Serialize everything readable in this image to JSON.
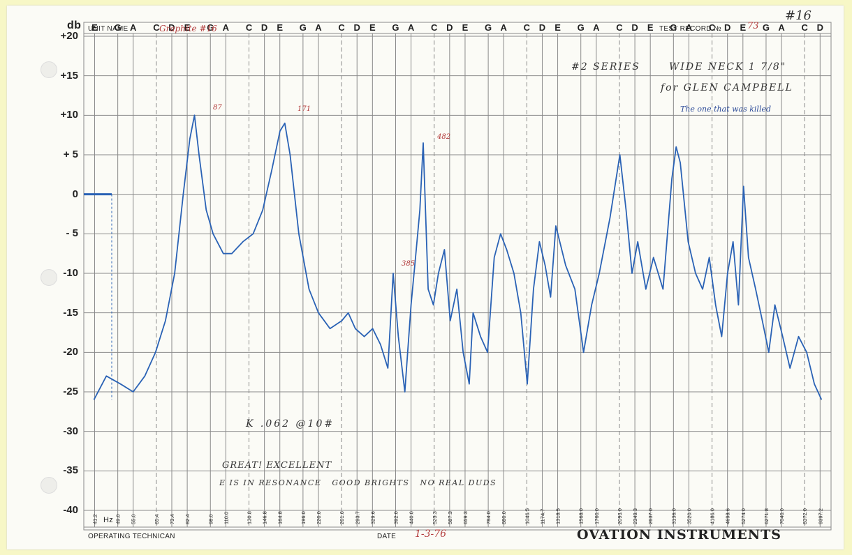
{
  "header": {
    "db_unit": "db",
    "unit_name_label": "UNIT NAME",
    "unit_name_value": "Graphite #16",
    "test_record_label": "TEST RECORD №",
    "test_record_value": "73",
    "corner_note": "#16"
  },
  "footer": {
    "operating_technician_label": "OPERATING TECHNICAN",
    "date_label": "DATE",
    "date_value": "1-3-76",
    "brand": "OVATION INSTRUMENTS"
  },
  "notes": {
    "series": "#2 SERIES",
    "neck": "WIDE NECK 1 7/8\"",
    "for": "for GLEN CAMPBELL",
    "stolen": "The one that was killed",
    "k_value": "K .062 @10#",
    "great": "GREAT! EXCELLENT",
    "resonance": "E IS IN RESONANCE   GOOD BRIGHTS   NO REAL DUDS"
  },
  "peak_labels": [
    "87",
    "171",
    "385",
    "482"
  ],
  "colors": {
    "trace": "#2a62b5",
    "grid": "#8a8a8a",
    "annotation_red": "#b23a3a"
  },
  "chart_data": {
    "type": "line",
    "title": "",
    "xlabel": "Hz",
    "ylabel": "db",
    "xscale": "log",
    "y_ticks": [
      "+20",
      "+15",
      "+10",
      "+ 5",
      "0",
      "- 5",
      "-10",
      "-15",
      "-20",
      "-25",
      "-30",
      "-35",
      "-40"
    ],
    "y_tick_values": [
      20,
      15,
      10,
      5,
      0,
      -5,
      -10,
      -15,
      -20,
      -25,
      -30,
      -35,
      -40
    ],
    "ylim": [
      -40,
      20
    ],
    "x_tick_labels": [
      "41.2",
      "49.0",
      "55.0",
      "65.4",
      "73.4",
      "82.4",
      "98.0",
      "110.0",
      "130.8",
      "146.8",
      "164.8",
      "196.0",
      "220.0",
      "261.6",
      "293.7",
      "329.6",
      "392.0",
      "440.0",
      "523.3",
      "587.3",
      "659.3",
      "784.0",
      "880.0",
      "1046.5",
      "1174.7",
      "1318.5",
      "1568.0",
      "1760.0",
      "2093.0",
      "2349.3",
      "2637.0",
      "3136.0",
      "3520.0",
      "4186.0",
      "4698.6",
      "5274.0",
      "6271.8",
      "7040.0",
      "8372.0",
      "9397.2"
    ],
    "note_labels": [
      "E",
      "G",
      "A",
      "C",
      "D",
      "E",
      "G",
      "A",
      "C",
      "D",
      "E",
      "G",
      "A",
      "C",
      "D",
      "E",
      "G",
      "A",
      "C",
      "D",
      "E",
      "G",
      "A",
      "C",
      "D",
      "E",
      "G",
      "A",
      "C",
      "D",
      "E",
      "G",
      "A",
      "C",
      "D",
      "E",
      "G",
      "A",
      "C",
      "D"
    ],
    "grid": true,
    "series": [
      {
        "x": [
          41,
          45,
          50,
          55,
          60,
          65,
          70,
          75,
          80,
          84,
          87,
          90,
          95,
          100,
          108,
          115,
          125,
          135,
          145,
          155,
          165,
          171,
          178,
          190,
          205,
          220,
          240,
          262,
          275,
          290,
          310,
          330,
          350,
          370,
          385,
          400,
          420,
          440,
          455,
          470,
          482,
          500,
          520,
          540,
          565,
          590,
          620,
          650,
          680,
          700,
          740,
          780,
          820,
          860,
          900,
          950,
          1000,
          1050,
          1100,
          1150,
          1200,
          1250,
          1300,
          1400,
          1500,
          1600,
          1700,
          1800,
          1950,
          2100,
          2200,
          2300,
          2400,
          2550,
          2700,
          2900,
          3100,
          3200,
          3300,
          3500,
          3700,
          3900,
          4100,
          4300,
          4500,
          4700,
          4900,
          5100,
          5300,
          5500,
          5800,
          6100,
          6400,
          6700,
          7100,
          7500,
          8000,
          8500,
          9000,
          9500
        ],
        "y": [
          -26,
          -23,
          -24,
          -25,
          -23,
          -20,
          -16,
          -10,
          0,
          7,
          10,
          5,
          -2,
          -5,
          -7.5,
          -7.5,
          -6,
          -5,
          -2,
          3,
          8,
          9,
          5,
          -5,
          -12,
          -15,
          -17,
          -16,
          -15,
          -17,
          -18,
          -17,
          -19,
          -22,
          -10,
          -18,
          -25,
          -14,
          -8,
          -2,
          6.5,
          -12,
          -14,
          -10,
          -7,
          -16,
          -12,
          -20,
          -24,
          -15,
          -18,
          -20,
          -8,
          -5,
          -7,
          -10,
          -15,
          -24,
          -12,
          -6,
          -9,
          -13,
          -4,
          -9,
          -12,
          -20,
          -14,
          -10,
          -3,
          5,
          -2,
          -10,
          -6,
          -12,
          -8,
          -12,
          2,
          6,
          4,
          -6,
          -10,
          -12,
          -8,
          -14,
          -18,
          -10,
          -6,
          -14,
          1,
          -8,
          -12,
          -16,
          -20,
          -14,
          -18,
          -22,
          -18,
          -20,
          -24,
          -26
        ]
      }
    ]
  }
}
